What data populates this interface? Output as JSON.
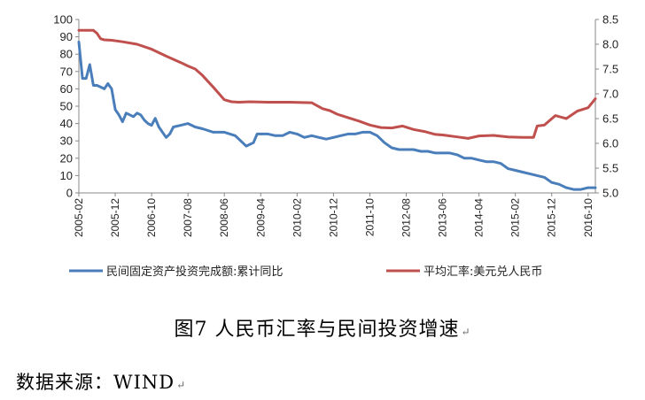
{
  "caption": "图7   人民币汇率与民间投资增速",
  "source": "数据来源：WIND",
  "para_mark": "↵",
  "chart_data": {
    "type": "line",
    "title": "",
    "grid": false,
    "legend_position": "bottom",
    "x_tick_labels": [
      "2005-02",
      "2005-12",
      "2006-10",
      "2007-08",
      "2008-06",
      "2009-04",
      "2010-02",
      "2010-12",
      "2011-10",
      "2012-08",
      "2013-06",
      "2014-04",
      "2015-02",
      "2015-12",
      "2016-10"
    ],
    "x_range": [
      "2005-02",
      "2016-12"
    ],
    "y_left": {
      "range": [
        0,
        100
      ],
      "ticks": [
        0,
        10,
        20,
        30,
        40,
        50,
        60,
        70,
        80,
        90,
        100
      ]
    },
    "y_right": {
      "range": [
        5.0,
        8.5
      ],
      "ticks": [
        "5.0",
        "5.5",
        "6.0",
        "6.5",
        "7.0",
        "7.5",
        "8.0",
        "8.5"
      ]
    },
    "series": [
      {
        "name": "民间固定资产投资完成额:累计同比",
        "axis": "left",
        "color": "#4a7ebb",
        "x": [
          "2005-02",
          "2005-03",
          "2005-04",
          "2005-05",
          "2005-06",
          "2005-07",
          "2005-08",
          "2005-09",
          "2005-10",
          "2005-11",
          "2005-12",
          "2006-01",
          "2006-02",
          "2006-03",
          "2006-04",
          "2006-05",
          "2006-06",
          "2006-07",
          "2006-08",
          "2006-09",
          "2006-10",
          "2006-11",
          "2006-12",
          "2007-02",
          "2007-03",
          "2007-04",
          "2007-06",
          "2007-08",
          "2007-10",
          "2007-12",
          "2008-03",
          "2008-06",
          "2008-09",
          "2008-12",
          "2009-02",
          "2009-03",
          "2009-04",
          "2009-06",
          "2009-08",
          "2009-10",
          "2009-12",
          "2010-02",
          "2010-04",
          "2010-06",
          "2010-08",
          "2010-10",
          "2010-12",
          "2011-02",
          "2011-04",
          "2011-06",
          "2011-08",
          "2011-10",
          "2011-12",
          "2012-02",
          "2012-04",
          "2012-06",
          "2012-08",
          "2012-10",
          "2012-12",
          "2013-02",
          "2013-04",
          "2013-06",
          "2013-08",
          "2013-10",
          "2013-12",
          "2014-02",
          "2014-04",
          "2014-06",
          "2014-08",
          "2014-10",
          "2014-12",
          "2015-02",
          "2015-04",
          "2015-06",
          "2015-08",
          "2015-10",
          "2015-12",
          "2016-02",
          "2016-04",
          "2016-06",
          "2016-08",
          "2016-10",
          "2016-12"
        ],
        "values": [
          87,
          66,
          66,
          74,
          62,
          62,
          61,
          60,
          63,
          60,
          48,
          45,
          41,
          46,
          45,
          44,
          46,
          45,
          42,
          40,
          39,
          43,
          38,
          32,
          34,
          38,
          39,
          40,
          38,
          37,
          35,
          35,
          33,
          27,
          29,
          34,
          34,
          34,
          33,
          33,
          35,
          34,
          32,
          33,
          32,
          31,
          32,
          33,
          34,
          34,
          35,
          35,
          33,
          29,
          26,
          25,
          25,
          25,
          24,
          24,
          23,
          23,
          23,
          22,
          20,
          20,
          19,
          18,
          18,
          17,
          14,
          13,
          12,
          11,
          10,
          9,
          6,
          5,
          3,
          2,
          2,
          3,
          3
        ]
      },
      {
        "name": "平均汇率:美元兑人民币",
        "axis": "right",
        "color": "#c0504d",
        "x": [
          "2005-02",
          "2005-06",
          "2005-07",
          "2005-08",
          "2005-09",
          "2005-11",
          "2006-02",
          "2006-06",
          "2006-10",
          "2007-02",
          "2007-06",
          "2007-08",
          "2007-10",
          "2007-12",
          "2008-03",
          "2008-06",
          "2008-08",
          "2008-10",
          "2009-01",
          "2009-06",
          "2009-12",
          "2010-06",
          "2010-09",
          "2010-11",
          "2011-01",
          "2011-04",
          "2011-07",
          "2011-10",
          "2012-01",
          "2012-04",
          "2012-07",
          "2012-10",
          "2013-01",
          "2013-04",
          "2013-06",
          "2013-10",
          "2014-01",
          "2014-04",
          "2014-08",
          "2014-12",
          "2015-04",
          "2015-07",
          "2015-08",
          "2015-10",
          "2016-01",
          "2016-04",
          "2016-07",
          "2016-10",
          "2016-12"
        ],
        "values": [
          8.28,
          8.28,
          8.22,
          8.11,
          8.09,
          8.08,
          8.05,
          8.0,
          7.9,
          7.76,
          7.63,
          7.56,
          7.5,
          7.37,
          7.13,
          6.88,
          6.84,
          6.83,
          6.84,
          6.83,
          6.83,
          6.82,
          6.7,
          6.66,
          6.59,
          6.52,
          6.45,
          6.37,
          6.32,
          6.31,
          6.35,
          6.28,
          6.24,
          6.18,
          6.17,
          6.13,
          6.1,
          6.15,
          6.16,
          6.13,
          6.12,
          6.12,
          6.35,
          6.37,
          6.56,
          6.5,
          6.65,
          6.72,
          6.9
        ]
      }
    ]
  }
}
